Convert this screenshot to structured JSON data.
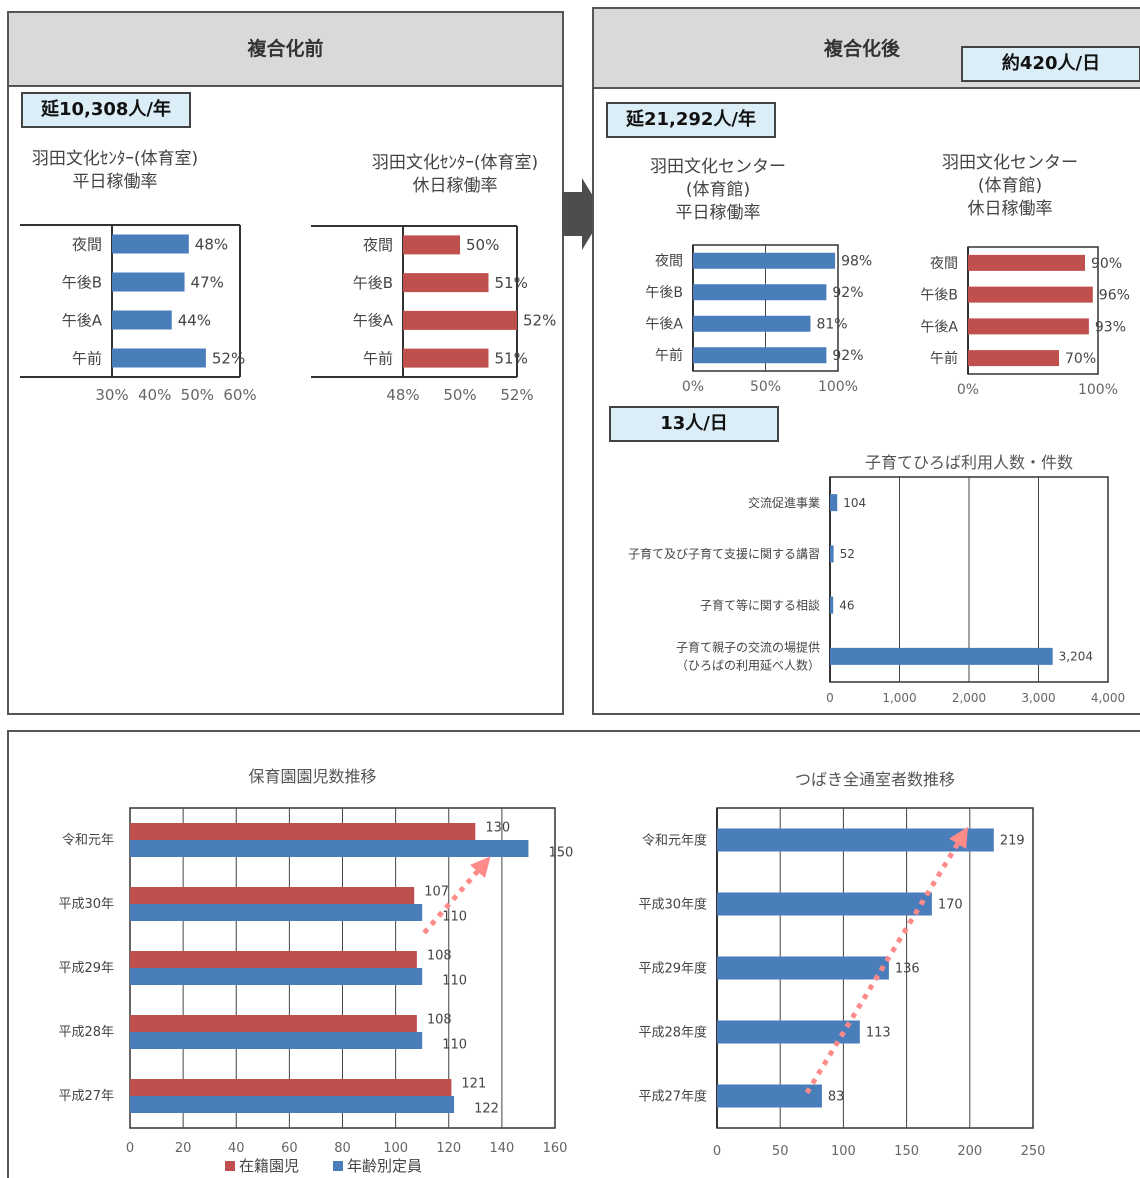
{
  "before": {
    "header": "複合化前",
    "badge": "延10,308人/年",
    "weekday_title": [
      "羽田文化ｾﾝﾀｰ(体育室)",
      "平日稼働率"
    ],
    "holiday_title": [
      "羽田文化ｾﾝﾀｰ(体育室)",
      "休日稼働率"
    ]
  },
  "after": {
    "header": "複合化後",
    "badge_top": "約420人/日",
    "badge_year": "延21,292人/年",
    "badge_day": "13人/日",
    "weekday_title": [
      "羽田文化センター",
      "(体育館)",
      "平日稼働率"
    ],
    "holiday_title": [
      "羽田文化センター",
      "(体育館)",
      "休日稼働率"
    ]
  },
  "colors": {
    "blue": "#4a7ebb",
    "red": "#c0504d",
    "arrow_pink": "#ff8a8a"
  },
  "chart_data": [
    {
      "id": "before-weekday",
      "type": "bar",
      "orientation": "horizontal",
      "categories": [
        "夜間",
        "午後B",
        "午後A",
        "午前"
      ],
      "values": [
        48,
        47,
        44,
        52
      ],
      "labels": [
        "48%",
        "47%",
        "44%",
        "52%"
      ],
      "xlim": [
        30,
        60
      ],
      "ticks": [
        "30%",
        "40%",
        "50%",
        "60%"
      ],
      "color": "#4a7ebb",
      "grid": false
    },
    {
      "id": "before-holiday",
      "type": "bar",
      "orientation": "horizontal",
      "categories": [
        "夜間",
        "午後B",
        "午後A",
        "午前"
      ],
      "values": [
        50,
        51,
        52,
        51
      ],
      "labels": [
        "50%",
        "51%",
        "52%",
        "51%"
      ],
      "xlim": [
        48,
        52
      ],
      "ticks": [
        "48%",
        "50%",
        "52%"
      ],
      "color": "#c0504d",
      "grid": false
    },
    {
      "id": "after-weekday",
      "type": "bar",
      "orientation": "horizontal",
      "categories": [
        "夜間",
        "午後B",
        "午後A",
        "午前"
      ],
      "values": [
        98,
        92,
        81,
        92
      ],
      "labels": [
        "98%",
        "92%",
        "81%",
        "92%"
      ],
      "xlim": [
        0,
        100
      ],
      "ticks": [
        "0%",
        "50%",
        "100%"
      ],
      "color": "#4a7ebb",
      "grid": true
    },
    {
      "id": "after-holiday",
      "type": "bar",
      "orientation": "horizontal",
      "categories": [
        "夜間",
        "午後B",
        "午後A",
        "午前"
      ],
      "values": [
        90,
        96,
        93,
        70
      ],
      "labels": [
        "90%",
        "96%",
        "93%",
        "70%"
      ],
      "xlim": [
        0,
        100
      ],
      "ticks": [
        "0%",
        "100%"
      ],
      "color": "#c0504d",
      "grid": false
    },
    {
      "id": "kosodate",
      "type": "bar",
      "orientation": "horizontal",
      "title": "子育てひろば利用人数・件数",
      "categories": [
        "交流促進事業",
        "子育て及び子育て支援に関する講習",
        "子育て等に関する相談",
        "子育て親子の交流の場提供|（ひろばの利用延べ人数）"
      ],
      "values": [
        104,
        52,
        46,
        3204
      ],
      "labels": [
        "104",
        "52",
        "46",
        "3,204"
      ],
      "xlim": [
        0,
        4000
      ],
      "ticks": [
        "0",
        "1,000",
        "2,000",
        "3,000",
        "4,000"
      ],
      "color": "#4a7ebb",
      "grid": true
    },
    {
      "id": "hoikuen",
      "type": "bar",
      "orientation": "horizontal",
      "title": "保育園園児数推移",
      "categories": [
        "令和元年",
        "平成30年",
        "平成29年",
        "平成28年",
        "平成27年"
      ],
      "series": [
        {
          "name": "在籍園児",
          "values": [
            130,
            107,
            108,
            108,
            121
          ],
          "color": "#c0504d"
        },
        {
          "name": "年齢別定員",
          "values": [
            150,
            110,
            110,
            110,
            122
          ],
          "color": "#4a7ebb"
        }
      ],
      "xlim": [
        0,
        160
      ],
      "ticks": [
        "0",
        "20",
        "40",
        "60",
        "80",
        "100",
        "120",
        "140",
        "160"
      ],
      "legend": "bottom",
      "grid": true
    },
    {
      "id": "tsubaki",
      "type": "bar",
      "orientation": "horizontal",
      "title": "つばき全通室者数推移",
      "categories": [
        "令和元年度",
        "平成30年度",
        "平成29年度",
        "平成28年度",
        "平成27年度"
      ],
      "values": [
        219,
        170,
        136,
        113,
        83
      ],
      "labels": [
        "219",
        "170",
        "136",
        "113",
        "83"
      ],
      "xlim": [
        0,
        250
      ],
      "ticks": [
        "0",
        "50",
        "100",
        "150",
        "200",
        "250"
      ],
      "color": "#4a7ebb",
      "grid": true
    }
  ]
}
